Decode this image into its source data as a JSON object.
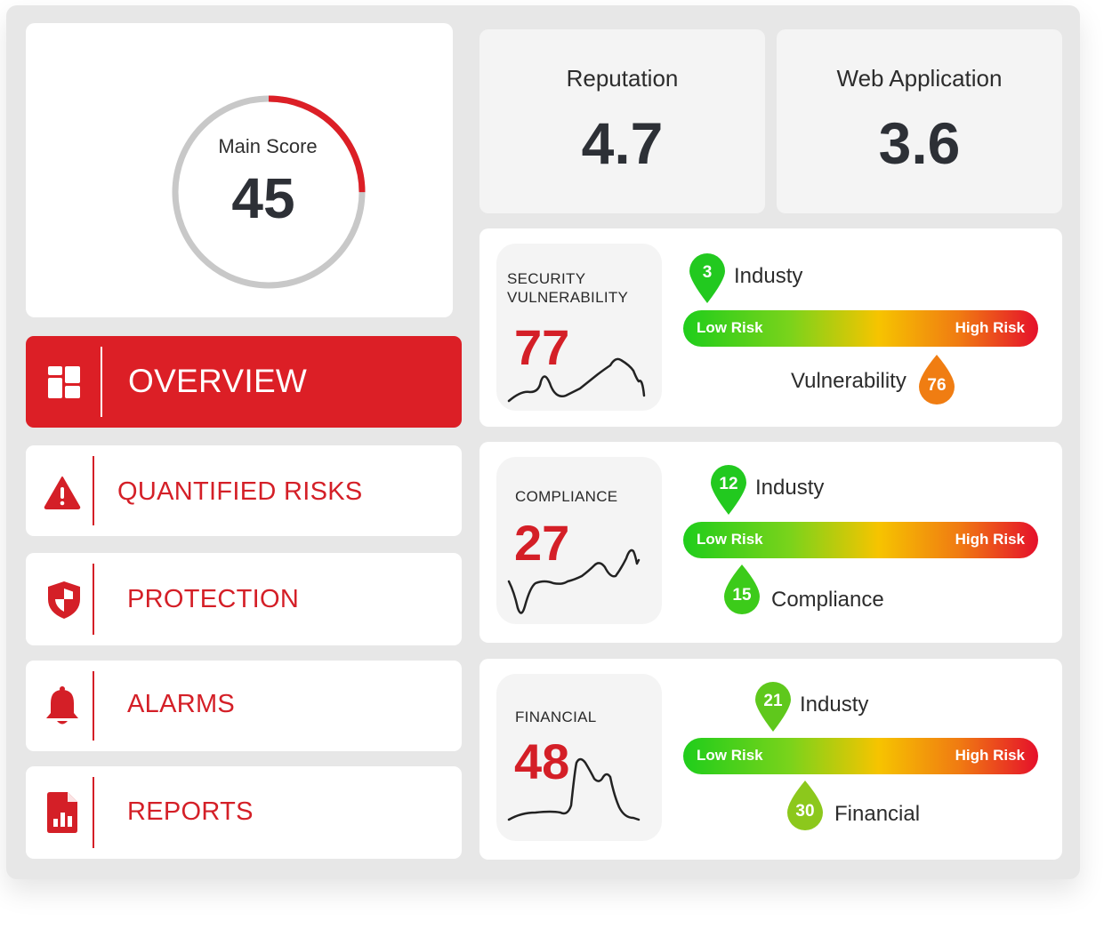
{
  "main_score": {
    "label": "Main Score",
    "value": "45",
    "progress_percent": 25
  },
  "menu": [
    {
      "label": "OVERVIEW",
      "icon": "dashboard-icon",
      "active": true
    },
    {
      "label": "QUANTIFIED RISKS",
      "icon": "warning-icon",
      "active": false
    },
    {
      "label": "PROTECTION",
      "icon": "shield-icon",
      "active": false
    },
    {
      "label": "ALARMS",
      "icon": "bell-icon",
      "active": false
    },
    {
      "label": "REPORTS",
      "icon": "report-icon",
      "active": false
    }
  ],
  "stats": [
    {
      "title": "Reputation",
      "value": "4.7"
    },
    {
      "title": "Web Application",
      "value": "3.6"
    }
  ],
  "risk_scale": {
    "low_label": "Low Risk",
    "high_label": "High Risk"
  },
  "risks": [
    {
      "title_line1": "SECURITY",
      "title_line2": "VULNERABILITY",
      "score": "77",
      "industry": {
        "value": "3",
        "label": "Industy",
        "color": "#22c91f"
      },
      "metric": {
        "value": "76",
        "label": "Vulnerability",
        "color": "#f07d12"
      }
    },
    {
      "title_line1": "COMPLIANCE",
      "title_line2": "",
      "score": "27",
      "industry": {
        "value": "12",
        "label": "Industy",
        "color": "#22c91f"
      },
      "metric": {
        "value": "15",
        "label": "Compliance",
        "color": "#3ccb1a"
      }
    },
    {
      "title_line1": "FINANCIAL",
      "title_line2": "",
      "score": "48",
      "industry": {
        "value": "21",
        "label": "Industy",
        "color": "#5fc81c"
      },
      "metric": {
        "value": "30",
        "label": "Financial",
        "color": "#8cc81c"
      }
    }
  ],
  "colors": {
    "accent": "#d41f27",
    "panel": "#e7e7e7",
    "gauge_track": "#c8c8c8"
  }
}
